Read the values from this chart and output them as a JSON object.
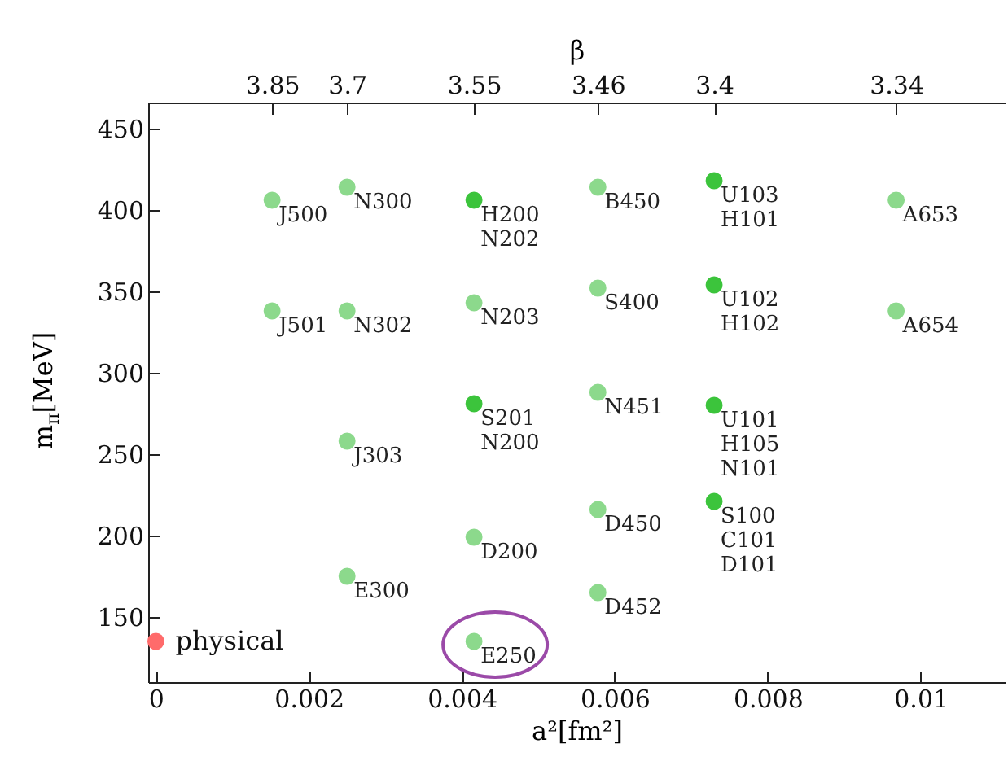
{
  "chart_data": {
    "type": "scatter",
    "xlabel": "a²[fm²]",
    "ylabel": "m$_{π}$[MeV]",
    "x2label": "β",
    "xlim": [
      -0.0001,
      0.0111
    ],
    "xticks": [
      0,
      0.002,
      0.004,
      0.006,
      0.008,
      0.01
    ],
    "ylim": [
      110,
      466
    ],
    "yticks": [
      150,
      200,
      250,
      300,
      350,
      400,
      450
    ],
    "grid": false,
    "marker": "circle",
    "series": [
      {
        "color": "#8cd98c",
        "x": [
          0.00152,
          0.0025,
          0.00578,
          0.00968,
          0.00152,
          0.0025,
          0.00416,
          0.00578,
          0.00968,
          0.00578,
          0.0025,
          0.00578,
          0.00416,
          0.0025,
          0.00578,
          0.00416
        ],
        "values": [
          406,
          414,
          414,
          406,
          338,
          338,
          343,
          352,
          338,
          288,
          258,
          216,
          199,
          175,
          165,
          135
        ]
      },
      {
        "color": "#3cc43c",
        "x": [
          0.00416,
          0.0073,
          0.0073,
          0.00416,
          0.0073,
          0.0073
        ],
        "values": [
          406,
          418,
          354,
          281,
          280,
          221
        ]
      },
      {
        "name": "physical",
        "color": "#ff6b6b",
        "x": [
          0
        ],
        "values": [
          135
        ]
      }
    ],
    "annotations": [
      {
        "text": "3.85",
        "x": 0.00152
      },
      {
        "text": "3.7",
        "x": 0.0025
      },
      {
        "text": "3.55",
        "x": 0.00416
      },
      {
        "text": "3.46",
        "x": 0.00578
      },
      {
        "text": "3.4",
        "x": 0.0073
      },
      {
        "text": "3.34",
        "x": 0.00968
      },
      {
        "text": "J500",
        "x": 0.00152,
        "y": 406
      },
      {
        "text": "N300",
        "x": 0.0025,
        "y": 414
      },
      {
        "text": "H200\nN202",
        "x": 0.00416,
        "y": 406
      },
      {
        "text": "B450",
        "x": 0.00578,
        "y": 414
      },
      {
        "text": "U103\nH101",
        "x": 0.0073,
        "y": 418
      },
      {
        "text": "A653",
        "x": 0.00968,
        "y": 406
      },
      {
        "text": "J501",
        "x": 0.00152,
        "y": 338
      },
      {
        "text": "N302",
        "x": 0.0025,
        "y": 338
      },
      {
        "text": "N203",
        "x": 0.00416,
        "y": 343
      },
      {
        "text": "S400",
        "x": 0.00578,
        "y": 352
      },
      {
        "text": "U102\nH102",
        "x": 0.0073,
        "y": 354
      },
      {
        "text": "A654",
        "x": 0.00968,
        "y": 338
      },
      {
        "text": "S201\nN200",
        "x": 0.00416,
        "y": 281
      },
      {
        "text": "N451",
        "x": 0.00578,
        "y": 288
      },
      {
        "text": "U101\nH105\nN101",
        "x": 0.0073,
        "y": 280
      },
      {
        "text": "J303",
        "x": 0.0025,
        "y": 258
      },
      {
        "text": "S100\nC101\nD101",
        "x": 0.0073,
        "y": 221
      },
      {
        "text": "D450",
        "x": 0.00578,
        "y": 216
      },
      {
        "text": "D200",
        "x": 0.00416,
        "y": 199
      },
      {
        "text": "E300",
        "x": 0.0025,
        "y": 175
      },
      {
        "text": "D452",
        "x": 0.00578,
        "y": 165
      },
      {
        "text": "E250",
        "x": 0.00416,
        "y": 135
      }
    ]
  }
}
